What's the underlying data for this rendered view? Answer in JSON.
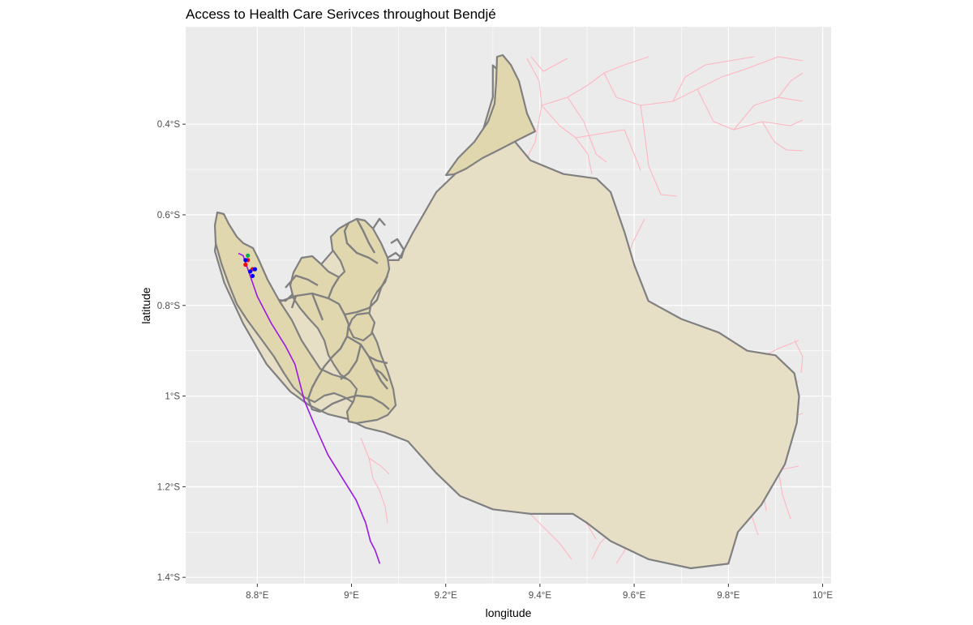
{
  "title": "Access to Health Care Serivces throughout Bendjé",
  "xlabel": "longitude",
  "ylabel": "latitude",
  "x_ticks": [
    {
      "value": 8.8,
      "label": "8.8°E"
    },
    {
      "value": 9.0,
      "label": "9°E"
    },
    {
      "value": 9.2,
      "label": "9.2°E"
    },
    {
      "value": 9.4,
      "label": "9.4°E"
    },
    {
      "value": 9.6,
      "label": "9.6°E"
    },
    {
      "value": 9.8,
      "label": "9.8°E"
    },
    {
      "value": 10.0,
      "label": "10°E"
    }
  ],
  "y_ticks": [
    {
      "value": -0.4,
      "label": "0.4°S"
    },
    {
      "value": -0.6,
      "label": "0.6°S"
    },
    {
      "value": -0.8,
      "label": "0.8°S"
    },
    {
      "value": -1.0,
      "label": "1°S"
    },
    {
      "value": -1.2,
      "label": "1.2°S"
    },
    {
      "value": -1.4,
      "label": "1.4°S"
    }
  ],
  "xlim": [
    8.648,
    10.018
  ],
  "ylim": [
    -1.414,
    -0.185
  ],
  "colors": {
    "panel_bg": "#ebebeb",
    "grid": "#ffffff",
    "district_fill": "#e6dfc6",
    "district_border": "#808080",
    "west_fill": "#e0d7ae",
    "roads": "#ffb6c1",
    "route": "#9b18e6",
    "facility_red": "#ff0000",
    "facility_blue": "#0000ff",
    "facility_green": "#00b050"
  },
  "chart_data": {
    "type": "map",
    "title": "Access to Health Care Serivces throughout Bendjé",
    "xlabel": "longitude",
    "ylabel": "latitude",
    "xlim": [
      8.648,
      10.018
    ],
    "ylim": [
      -1.414,
      -0.185
    ],
    "grid": true,
    "district_boundary": [
      [
        9.3,
        -0.27
      ],
      [
        9.31,
        -0.28
      ],
      [
        9.315,
        -0.33
      ],
      [
        9.32,
        -0.38
      ],
      [
        9.34,
        -0.43
      ],
      [
        9.38,
        -0.48
      ],
      [
        9.45,
        -0.51
      ],
      [
        9.52,
        -0.52
      ],
      [
        9.55,
        -0.55
      ],
      [
        9.58,
        -0.64
      ],
      [
        9.6,
        -0.71
      ],
      [
        9.63,
        -0.79
      ],
      [
        9.7,
        -0.83
      ],
      [
        9.78,
        -0.86
      ],
      [
        9.84,
        -0.9
      ],
      [
        9.9,
        -0.91
      ],
      [
        9.94,
        -0.95
      ],
      [
        9.95,
        -1.0
      ],
      [
        9.945,
        -1.06
      ],
      [
        9.92,
        -1.15
      ],
      [
        9.87,
        -1.24
      ],
      [
        9.82,
        -1.3
      ],
      [
        9.8,
        -1.37
      ],
      [
        9.72,
        -1.38
      ],
      [
        9.63,
        -1.36
      ],
      [
        9.55,
        -1.32
      ],
      [
        9.5,
        -1.28
      ],
      [
        9.47,
        -1.26
      ],
      [
        9.38,
        -1.26
      ],
      [
        9.3,
        -1.25
      ],
      [
        9.23,
        -1.22
      ],
      [
        9.18,
        -1.17
      ],
      [
        9.12,
        -1.1
      ],
      [
        9.07,
        -1.08
      ],
      [
        9.03,
        -1.07
      ],
      [
        8.99,
        -1.05
      ],
      [
        8.95,
        -1.04
      ],
      [
        8.91,
        -1.02
      ],
      [
        8.87,
        -0.99
      ],
      [
        8.82,
        -0.93
      ],
      [
        8.77,
        -0.84
      ],
      [
        8.73,
        -0.75
      ],
      [
        8.71,
        -0.68
      ],
      [
        8.715,
        -0.64
      ],
      [
        8.73,
        -0.65
      ],
      [
        8.76,
        -0.7
      ],
      [
        8.8,
        -0.78
      ],
      [
        8.86,
        -0.79
      ],
      [
        8.91,
        -0.74
      ],
      [
        8.96,
        -0.68
      ],
      [
        9.0,
        -0.66
      ],
      [
        9.03,
        -0.69
      ],
      [
        9.06,
        -0.7
      ],
      [
        9.1,
        -0.7
      ],
      [
        9.13,
        -0.64
      ],
      [
        9.18,
        -0.55
      ],
      [
        9.22,
        -0.51
      ],
      [
        9.25,
        -0.47
      ],
      [
        9.28,
        -0.41
      ],
      [
        9.3,
        -0.34
      ],
      [
        9.3,
        -0.27
      ]
    ],
    "facilities": [
      {
        "lon": 8.775,
        "lat": -0.71,
        "color": "red"
      },
      {
        "lon": 8.78,
        "lat": -0.7,
        "color": "red"
      },
      {
        "lon": 8.79,
        "lat": -0.72,
        "color": "red"
      },
      {
        "lon": 8.775,
        "lat": -0.7,
        "color": "blue"
      },
      {
        "lon": 8.785,
        "lat": -0.725,
        "color": "blue"
      },
      {
        "lon": 8.79,
        "lat": -0.735,
        "color": "blue"
      },
      {
        "lon": 8.795,
        "lat": -0.72,
        "color": "blue"
      },
      {
        "lon": 8.78,
        "lat": -0.69,
        "color": "green"
      }
    ],
    "route": [
      [
        8.76,
        -0.685
      ],
      [
        8.77,
        -0.69
      ],
      [
        8.78,
        -0.72
      ],
      [
        8.79,
        -0.75
      ],
      [
        8.8,
        -0.78
      ],
      [
        8.83,
        -0.84
      ],
      [
        8.86,
        -0.89
      ],
      [
        8.88,
        -0.93
      ],
      [
        8.89,
        -0.97
      ],
      [
        8.9,
        -1.01
      ],
      [
        8.92,
        -1.06
      ],
      [
        8.95,
        -1.13
      ],
      [
        8.98,
        -1.18
      ],
      [
        9.01,
        -1.23
      ],
      [
        9.03,
        -1.28
      ],
      [
        9.04,
        -1.32
      ],
      [
        9.05,
        -1.34
      ],
      [
        9.06,
        -1.37
      ]
    ]
  }
}
